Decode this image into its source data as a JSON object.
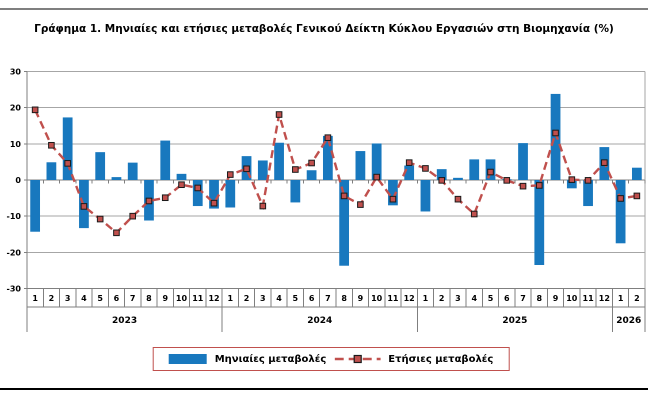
{
  "chart_data": {
    "type": "bar",
    "title": "Γράφημα 1. Μηνιαίες και ετήσιες μεταβολές Γενικού Δείκτη Κύκλου Εργασιών στη Βιομηχανία (%)",
    "y_axis": {
      "min": -30,
      "max": 30,
      "step": 10,
      "tick_labels": [
        "30",
        "20",
        "10",
        "0",
        "-10",
        "-20",
        "-30"
      ]
    },
    "x_axis": {
      "years": [
        {
          "label": "2023",
          "months": [
            "1",
            "2",
            "3",
            "4",
            "5",
            "6",
            "7",
            "8",
            "9",
            "10",
            "11",
            "12"
          ]
        },
        {
          "label": "2024",
          "months": [
            "1",
            "2",
            "3",
            "4",
            "5",
            "6",
            "7",
            "8",
            "9",
            "10",
            "11",
            "12"
          ]
        },
        {
          "label": "2025",
          "months": [
            "1",
            "2",
            "3",
            "4",
            "5",
            "6",
            "7",
            "8",
            "9",
            "10",
            "11",
            "12"
          ]
        },
        {
          "label": "2026",
          "months": [
            "1",
            "2"
          ]
        }
      ]
    },
    "series": [
      {
        "name": "Μηνιαίες μεταβολές",
        "type": "bar",
        "color": "#1878be",
        "values": [
          -14.3,
          4.9,
          17.3,
          -13.3,
          7.7,
          0.8,
          4.8,
          -11.2,
          10.9,
          1.7,
          -7.2,
          -7.9,
          -7.6,
          6.6,
          5.4,
          10.3,
          -6.2,
          2.7,
          12.2,
          -23.7,
          8.0,
          10.1,
          -7.0,
          4.0,
          -8.7,
          3.0,
          0.6,
          5.7,
          5.7,
          0.2,
          10.2,
          -23.5,
          23.8,
          -2.3,
          -7.2,
          9.1,
          -17.5,
          3.4
        ]
      },
      {
        "name": "Ετήσιες μεταβολές",
        "type": "line",
        "style": "dashed",
        "marker": "square",
        "color": "#c0504d",
        "marker_edge_color": "#1a1a1a",
        "values": [
          19.4,
          9.6,
          4.6,
          -7.3,
          -10.8,
          -14.6,
          -10.0,
          -5.8,
          -4.9,
          -1.3,
          -2.2,
          -6.4,
          1.5,
          3.1,
          -7.2,
          18.1,
          2.9,
          4.7,
          11.7,
          -4.4,
          -6.8,
          0.8,
          -5.3,
          4.8,
          3.2,
          -0.1,
          -5.3,
          -9.4,
          2.2,
          -0.1,
          -1.7,
          -1.5,
          13.0,
          0.1,
          -0.1,
          4.8,
          -5.1,
          -4.4
        ]
      }
    ],
    "legend_position": "bottom",
    "grid": "horizontal",
    "colors": {
      "gridline": "#a6a6a6",
      "axis": "#7f7f7f",
      "text": "#000000",
      "legend_border": "#c0504d",
      "top_rule": "#7f7f7f",
      "bottom_rule": "#000000"
    }
  }
}
